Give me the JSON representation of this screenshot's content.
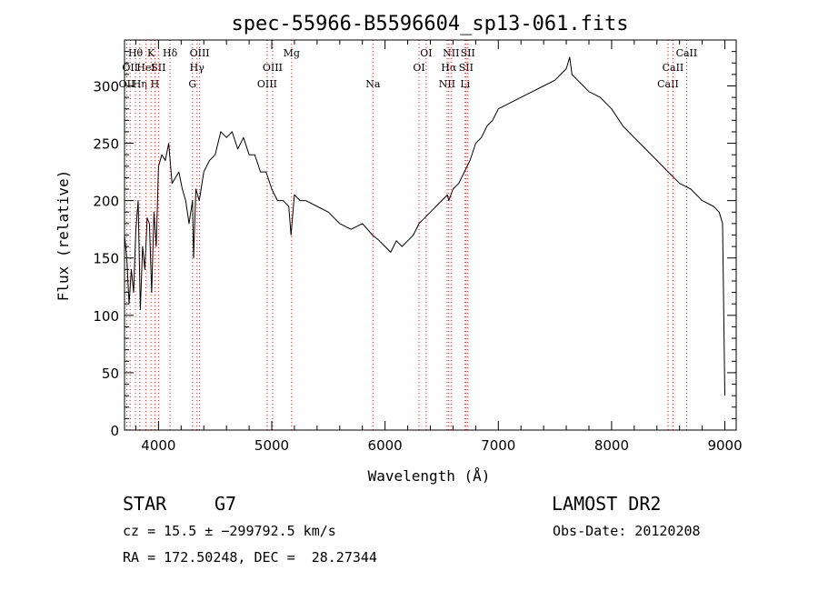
{
  "chart_data": {
    "type": "line",
    "title": "spec-55966-B5596604_sp13-061.fits",
    "xlabel": "Wavelength (Å)",
    "ylabel": "Flux (relative)",
    "xlim": [
      3700,
      9100
    ],
    "ylim": [
      0,
      340
    ],
    "xticks": [
      4000,
      5000,
      6000,
      7000,
      8000,
      9000
    ],
    "yticks": [
      0,
      50,
      100,
      150,
      200,
      250,
      300
    ],
    "grid": false,
    "line_color": "#000000",
    "marker_color": "#d02020",
    "series": [
      {
        "x": [
          3700,
          3720,
          3740,
          3760,
          3780,
          3800,
          3820,
          3840,
          3860,
          3880,
          3900,
          3920,
          3940,
          3960,
          3980,
          4000,
          4030,
          4060,
          4090,
          4120,
          4150,
          4180,
          4210,
          4240,
          4270,
          4300,
          4310,
          4330,
          4360,
          4400,
          4450,
          4500,
          4550,
          4600,
          4650,
          4700,
          4750,
          4800,
          4850,
          4900,
          4950,
          5000,
          5050,
          5100,
          5150,
          5170,
          5200,
          5250,
          5300,
          5400,
          5500,
          5600,
          5700,
          5800,
          5890,
          5950,
          6000,
          6050,
          6100,
          6150,
          6200,
          6250,
          6300,
          6350,
          6400,
          6450,
          6500,
          6550,
          6563,
          6600,
          6650,
          6700,
          6750,
          6800,
          6850,
          6900,
          6950,
          7000,
          7100,
          7200,
          7300,
          7400,
          7500,
          7550,
          7600,
          7630,
          7650,
          7700,
          7750,
          7800,
          7900,
          8000,
          8100,
          8200,
          8300,
          8400,
          8500,
          8600,
          8700,
          8800,
          8900,
          8950,
          8980,
          9000
        ],
        "y": [
          170,
          150,
          110,
          140,
          120,
          175,
          200,
          105,
          160,
          140,
          185,
          180,
          120,
          190,
          160,
          230,
          240,
          235,
          250,
          215,
          220,
          225,
          210,
          200,
          180,
          200,
          150,
          210,
          200,
          225,
          235,
          240,
          260,
          255,
          260,
          245,
          255,
          240,
          240,
          225,
          225,
          210,
          200,
          200,
          195,
          170,
          205,
          200,
          200,
          195,
          190,
          180,
          175,
          180,
          170,
          165,
          160,
          155,
          165,
          160,
          165,
          170,
          180,
          185,
          190,
          195,
          200,
          205,
          200,
          210,
          215,
          225,
          235,
          250,
          255,
          265,
          270,
          280,
          285,
          290,
          295,
          300,
          305,
          310,
          315,
          325,
          310,
          305,
          300,
          295,
          290,
          280,
          265,
          255,
          245,
          235,
          225,
          215,
          210,
          200,
          195,
          190,
          180,
          30
        ]
      }
    ],
    "line_markers": [
      {
        "x": 3720,
        "labels": [
          "OII"
        ],
        "rows": [
          2
        ]
      },
      {
        "x": 3750,
        "labels": [
          "OII"
        ],
        "rows": [
          1
        ]
      },
      {
        "x": 3797,
        "labels": [
          "Hθ"
        ],
        "rows": [
          0
        ]
      },
      {
        "x": 3835,
        "labels": [
          "Hη"
        ],
        "rows": [
          2
        ]
      },
      {
        "x": 3889,
        "labels": [
          "HeI"
        ],
        "rows": [
          1
        ]
      },
      {
        "x": 3934,
        "labels": [
          "K"
        ],
        "rows": [
          0
        ]
      },
      {
        "x": 3968,
        "labels": [
          "H"
        ],
        "rows": [
          2
        ]
      },
      {
        "x": 4000,
        "labels": [
          "SII"
        ],
        "rows": [
          1
        ]
      },
      {
        "x": 4102,
        "labels": [
          "Hδ"
        ],
        "rows": [
          0
        ]
      },
      {
        "x": 4300,
        "labels": [
          "G"
        ],
        "rows": [
          2
        ]
      },
      {
        "x": 4340,
        "labels": [
          "Hγ"
        ],
        "rows": [
          1
        ]
      },
      {
        "x": 4363,
        "labels": [
          "OIII"
        ],
        "rows": [
          0
        ]
      },
      {
        "x": 4959,
        "labels": [
          "OIII"
        ],
        "rows": [
          2
        ]
      },
      {
        "x": 5007,
        "labels": [
          "OIII"
        ],
        "rows": [
          1
        ]
      },
      {
        "x": 5175,
        "labels": [
          "Mg"
        ],
        "rows": [
          0
        ]
      },
      {
        "x": 5893,
        "labels": [
          "Na"
        ],
        "rows": [
          2
        ]
      },
      {
        "x": 6300,
        "labels": [
          "OI"
        ],
        "rows": [
          1
        ]
      },
      {
        "x": 6363,
        "labels": [
          "OI"
        ],
        "rows": [
          0
        ]
      },
      {
        "x": 6548,
        "labels": [
          "NII"
        ],
        "rows": [
          2
        ]
      },
      {
        "x": 6563,
        "labels": [
          "Hα"
        ],
        "rows": [
          1
        ]
      },
      {
        "x": 6583,
        "labels": [
          "NII"
        ],
        "rows": [
          0
        ]
      },
      {
        "x": 6707,
        "labels": [
          "Li"
        ],
        "rows": [
          2
        ]
      },
      {
        "x": 6716,
        "labels": [
          "SII"
        ],
        "rows": [
          1
        ]
      },
      {
        "x": 6731,
        "labels": [
          "SII"
        ],
        "rows": [
          0
        ]
      },
      {
        "x": 8498,
        "labels": [
          "CaII"
        ],
        "rows": [
          2
        ]
      },
      {
        "x": 8542,
        "labels": [
          "CaII"
        ],
        "rows": [
          1
        ]
      },
      {
        "x": 8662,
        "labels": [
          "CaII"
        ],
        "rows": [
          0
        ]
      }
    ]
  },
  "info": {
    "class_label": "STAR",
    "subclass": "G7",
    "survey": "LAMOST DR2",
    "cz_text": "cz = 15.5 ± −299792.5 km/s",
    "obs_date": "Obs-Date: 20120208",
    "coords": "RA = 172.50248, DEC =  28.27344"
  }
}
